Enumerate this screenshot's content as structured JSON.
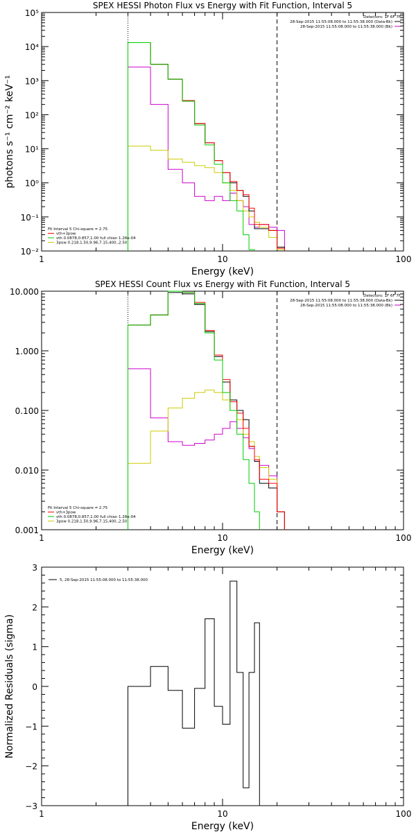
{
  "panels": [
    {
      "title": "SPEX HESSI Photon Flux vs Energy with Fit Function, Interval 5",
      "xlabel": "Energy (keV)",
      "ylabel": "photons s⁻¹ cm⁻² keV⁻¹",
      "header_lines": [
        "Detectors: 1F 6F 7F"
      ],
      "legend_top": [
        {
          "text": "28-Sep-2015 11:55:08.000 to 11:55:38.000 (Data-Bk)",
          "color": "#000000"
        },
        {
          "text": "28-Sep-2015 11:55:08.000 to 11:55:38.000 (Bk)",
          "color": "#cc00cc"
        }
      ],
      "legend_bottom": [
        {
          "text": "Fit Interval 5   Chi-square = 2.75",
          "color": ""
        },
        {
          "text": "vth+3pow",
          "color": "#ff0000"
        },
        {
          "text": "vth 0.0878,0.857,1.00  full chian 1.28e-04",
          "color": "#00cc00"
        },
        {
          "text": "3pow 0.218,1.50,9.96,7.15,400.,2.50",
          "color": "#cccc00"
        }
      ],
      "ytick_labels": [
        "10⁻²",
        "10⁻¹",
        "10⁰",
        "10¹",
        "10²",
        "10³",
        "10⁴",
        "10⁵"
      ]
    },
    {
      "title": "SPEX HESSI Count Flux vs Energy with Fit Function, Interval 5",
      "xlabel": "Energy (keV)",
      "ylabel": "",
      "header_lines": [
        "Detectors: 1F 6F 7F"
      ],
      "legend_top": [
        {
          "text": "28-Sep-2015 11:55:08.000 to 11:55:38.000 (Data-Bk)",
          "color": "#000000"
        },
        {
          "text": "28-Sep-2015 11:55:08.000 to 11:55:38.000 (Bk)",
          "color": "#cc00cc"
        }
      ],
      "legend_bottom": [
        {
          "text": "Fit Interval 5   Chi-square = 2.75",
          "color": ""
        },
        {
          "text": "vth+3pow",
          "color": "#ff0000"
        },
        {
          "text": "vth 0.0878,0.857,1.00  full chian 1.28e-04",
          "color": "#00cc00"
        },
        {
          "text": "3pow 0.218,1.50,9.96,7.15,400.,2.50",
          "color": "#cccc00"
        }
      ],
      "ytick_labels": [
        "0.001",
        "0.010",
        "0.100",
        "1.000",
        "10.000"
      ]
    },
    {
      "title": "",
      "xlabel": "Energy (keV)",
      "ylabel": "Normalized Residuals (sigma)",
      "header_lines": [],
      "legend_top": [
        {
          "text": "5, 28-Sep-2015 11:55:08.000 to 11:55:38.000",
          "color": "#000000"
        }
      ],
      "legend_bottom": [],
      "ytick_labels": [
        "−3",
        "−2",
        "−1",
        "0",
        "1",
        "2",
        "3"
      ]
    }
  ],
  "xtick_labels": [
    "1",
    "10",
    "100"
  ],
  "colors": {
    "data": "#000000",
    "total_fit": "#ff0000",
    "thermal": "#00cc00",
    "powerlaw": "#cccc00",
    "background": "#cc00cc",
    "marker": "#000000",
    "frame": "#000000"
  },
  "chart_data": [
    {
      "type": "line",
      "title": "SPEX HESSI Photon Flux vs Energy with Fit Function, Interval 5",
      "xlabel": "Energy (keV)",
      "ylabel": "photons s⁻¹ cm⁻² keV⁻¹",
      "xscale": "log",
      "yscale": "log",
      "xlim": [
        1,
        100
      ],
      "ylim": [
        0.01,
        100000
      ],
      "x_edges": [
        3,
        4,
        5,
        6,
        7,
        8,
        9,
        10,
        11,
        12,
        13,
        14,
        15,
        16,
        18,
        20,
        22
      ],
      "series": [
        {
          "name": "Data-Bk",
          "color": "#000000",
          "values": [
            13000,
            3000,
            1100,
            250,
            55,
            15,
            4.5,
            2.0,
            1.0,
            0.6,
            0.4,
            0.15,
            0.045,
            0.045,
            0.04,
            0.013
          ]
        },
        {
          "name": "vth+3pow",
          "color": "#ff0000",
          "values": [
            13000,
            3000,
            1100,
            260,
            55,
            15,
            4.5,
            2.0,
            1.1,
            0.6,
            0.45,
            0.18,
            0.06,
            0.06,
            0.04,
            0.012
          ]
        },
        {
          "name": "vth",
          "color": "#00cc00",
          "values": [
            13000,
            3000,
            1100,
            250,
            50,
            13,
            3.5,
            1.0,
            0.3,
            0.15,
            0.03,
            0.011
          ]
        },
        {
          "name": "3pow",
          "color": "#cccc00",
          "values": [
            12,
            9,
            5,
            4,
            3.2,
            2.8,
            2.0,
            1.0,
            0.6,
            0.3,
            0.15,
            0.1,
            0.07,
            0.05,
            0.025,
            0.011
          ]
        },
        {
          "name": "Bk",
          "color": "#cc00cc",
          "values": [
            2500,
            200,
            2.5,
            1.0,
            0.4,
            0.3,
            0.4,
            0.3,
            0.5,
            0.3,
            0.2,
            0.06,
            0.05,
            0.06,
            0.05,
            0.04
          ]
        }
      ],
      "vlines": [
        {
          "x": 3,
          "style": "dotted"
        },
        {
          "x": 20,
          "style": "dashed"
        }
      ],
      "legend": "top-right and bottom-left"
    },
    {
      "type": "line",
      "title": "SPEX HESSI Count Flux vs Energy with Fit Function, Interval 5",
      "xlabel": "Energy (keV)",
      "ylabel": "",
      "xscale": "log",
      "yscale": "log",
      "xlim": [
        1,
        100
      ],
      "ylim": [
        0.001,
        10
      ],
      "x_edges": [
        3,
        4,
        5,
        6,
        7,
        8,
        9,
        10,
        11,
        12,
        13,
        14,
        15,
        16,
        18,
        20,
        22
      ],
      "series": [
        {
          "name": "Data-Bk",
          "color": "#000000",
          "values": [
            2.7,
            4.0,
            9.5,
            9.0,
            6.0,
            2.1,
            0.8,
            0.3,
            0.15,
            0.1,
            0.07,
            0.025,
            0.014,
            0.006,
            0.005,
            0.002
          ]
        },
        {
          "name": "vth+3pow",
          "color": "#ff0000",
          "values": [
            2.7,
            4.0,
            10,
            9.5,
            6.5,
            2.2,
            0.85,
            0.33,
            0.14,
            0.09,
            0.05,
            0.025,
            0.015,
            0.007,
            0.006,
            0.002
          ]
        },
        {
          "name": "vth",
          "color": "#00cc00",
          "values": [
            2.7,
            4.0,
            10,
            9.5,
            6.2,
            2.0,
            0.7,
            0.2,
            0.1,
            0.04,
            0.015,
            0.006,
            0.002
          ]
        },
        {
          "name": "3pow",
          "color": "#cccc00",
          "values": [
            0.013,
            0.045,
            0.11,
            0.16,
            0.2,
            0.22,
            0.2,
            0.15,
            0.1,
            0.07,
            0.04,
            0.03,
            0.017,
            0.011,
            0.007,
            0.002
          ]
        },
        {
          "name": "Bk",
          "color": "#cc00cc",
          "values": [
            0.5,
            0.075,
            0.03,
            0.026,
            0.028,
            0.032,
            0.04,
            0.05,
            0.065,
            0.05,
            0.035,
            0.023,
            0.014,
            0.012,
            0.008,
            0.002
          ]
        }
      ],
      "vlines": [
        {
          "x": 3,
          "style": "dotted"
        },
        {
          "x": 20,
          "style": "dashed"
        }
      ],
      "legend": "top-right and bottom-left"
    },
    {
      "type": "line",
      "title": "",
      "xlabel": "Energy (keV)",
      "ylabel": "Normalized Residuals (sigma)",
      "xscale": "log",
      "yscale": "linear",
      "xlim": [
        1,
        100
      ],
      "ylim": [
        -3,
        3
      ],
      "x_edges": [
        3,
        4,
        5,
        6,
        7,
        8,
        9,
        10,
        11,
        12,
        13,
        14,
        15,
        16,
        18,
        20
      ],
      "series": [
        {
          "name": "5, 28-Sep-2015 11:55:08.000 to 11:55:38.000",
          "color": "#000000",
          "values": [
            0.0,
            0.5,
            -0.1,
            -1.05,
            -0.05,
            1.7,
            -0.5,
            -0.95,
            2.65,
            0.35,
            -2.55,
            0.35,
            1.6
          ]
        }
      ],
      "legend": "top-left"
    }
  ]
}
